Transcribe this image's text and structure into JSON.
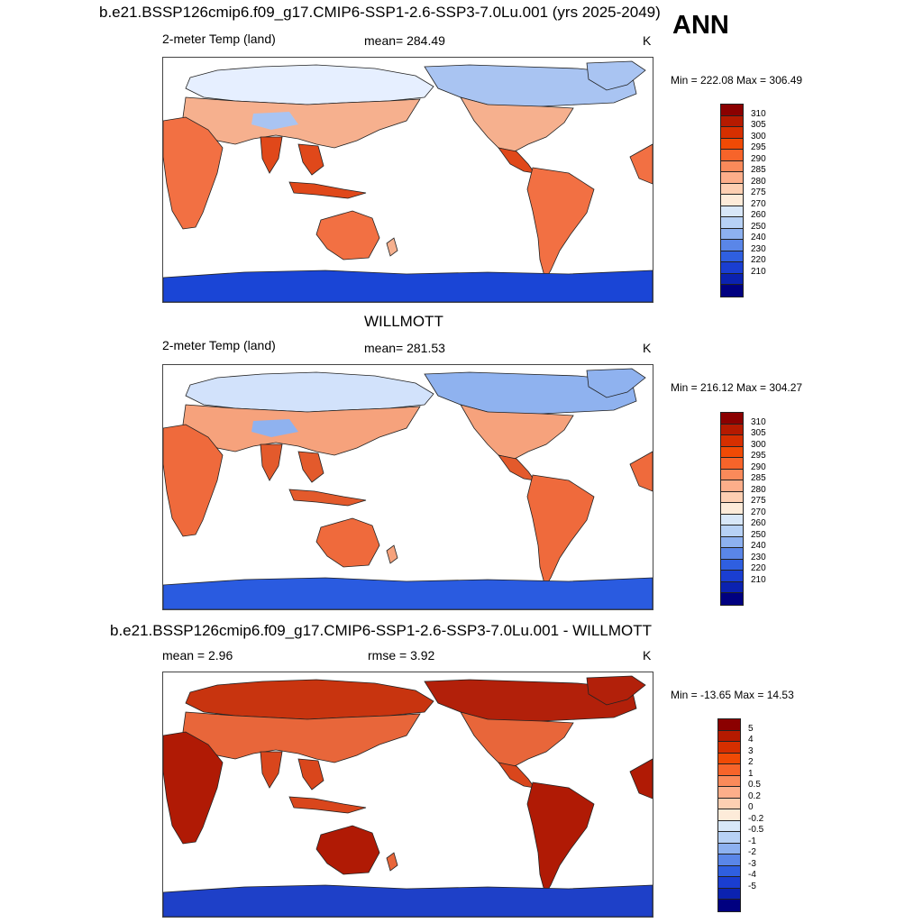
{
  "page": {
    "main_title": "b.e21.BSSP126cmip6.f09_g17.CMIP6-SSP1-2.6-SSP3-7.0Lu.001 (yrs 2025-2049)",
    "season": "ANN"
  },
  "panels": [
    {
      "id": "model",
      "title": "",
      "left_label": "2-meter Temp (land)",
      "center_label": "mean= 284.49",
      "units": "K",
      "minmax": "Min = 222.08 Max = 306.49",
      "colorbar": {
        "ticks": [
          "310",
          "305",
          "300",
          "295",
          "290",
          "285",
          "280",
          "275",
          "270",
          "260",
          "250",
          "240",
          "230",
          "220",
          "210"
        ],
        "colors": [
          "#8b0000",
          "#b51a00",
          "#d62f00",
          "#f04a05",
          "#f7642a",
          "#fa8a5a",
          "#fcae8a",
          "#fdcfb2",
          "#fdebd9",
          "#d8e7f8",
          "#b7d1f5",
          "#8db1f0",
          "#5a86e8",
          "#2f5fe0",
          "#1a3ed1",
          "#0b22b0",
          "#000080"
        ]
      },
      "map_palette": {
        "ocean": "#ffffff",
        "polar": "#1a45d6",
        "cold": "#a9c4f2",
        "cool": "#e6efff",
        "mild": "#f6b08e",
        "warm": "#f27043",
        "hot": "#e0481a"
      }
    },
    {
      "id": "obs",
      "title": "WILLMOTT",
      "left_label": "2-meter Temp (land)",
      "center_label": "mean= 281.53",
      "units": "K",
      "minmax": "Min = 216.12 Max = 304.27",
      "colorbar": {
        "ticks": [
          "310",
          "305",
          "300",
          "295",
          "290",
          "285",
          "280",
          "275",
          "270",
          "260",
          "250",
          "240",
          "230",
          "220",
          "210"
        ],
        "colors": [
          "#8b0000",
          "#b51a00",
          "#d62f00",
          "#f04a05",
          "#f7642a",
          "#fa8a5a",
          "#fcae8a",
          "#fdcfb2",
          "#fdebd9",
          "#d8e7f8",
          "#b7d1f5",
          "#8db1f0",
          "#5a86e8",
          "#2f5fe0",
          "#1a3ed1",
          "#0b22b0",
          "#000080"
        ]
      },
      "map_palette": {
        "ocean": "#ffffff",
        "polar": "#2a5be0",
        "cold": "#8fb2ef",
        "cool": "#d2e2fb",
        "mild": "#f6a27c",
        "warm": "#ef6a3c",
        "hot": "#e35a2c"
      }
    },
    {
      "id": "diff",
      "title": "b.e21.BSSP126cmip6.f09_g17.CMIP6-SSP1-2.6-SSP3-7.0Lu.001 - WILLMOTT",
      "left_label": "mean =   2.96",
      "center_label": "rmse =   3.92",
      "units": "K",
      "minmax": "Min = -13.65 Max =  14.53",
      "colorbar": {
        "ticks": [
          "5",
          "4",
          "3",
          "2",
          "1",
          "0.5",
          "0.2",
          "0",
          "-0.2",
          "-0.5",
          "-1",
          "-2",
          "-3",
          "-4",
          "-5"
        ],
        "colors": [
          "#8b0000",
          "#b51a00",
          "#d62f00",
          "#f04a05",
          "#f7642a",
          "#fa8a5a",
          "#fcae8a",
          "#fdcfb2",
          "#fdebd9",
          "#d8e7f8",
          "#b7d1f5",
          "#8db1f0",
          "#5a86e8",
          "#2f5fe0",
          "#1a3ed1",
          "#0b22b0",
          "#000080"
        ]
      },
      "map_palette": {
        "ocean": "#ffffff",
        "polar": "#1e40c8",
        "cold": "#b2200a",
        "cool": "#c8340f",
        "mild": "#e8663a",
        "warm": "#b01a05",
        "hot": "#d9461c"
      }
    }
  ]
}
